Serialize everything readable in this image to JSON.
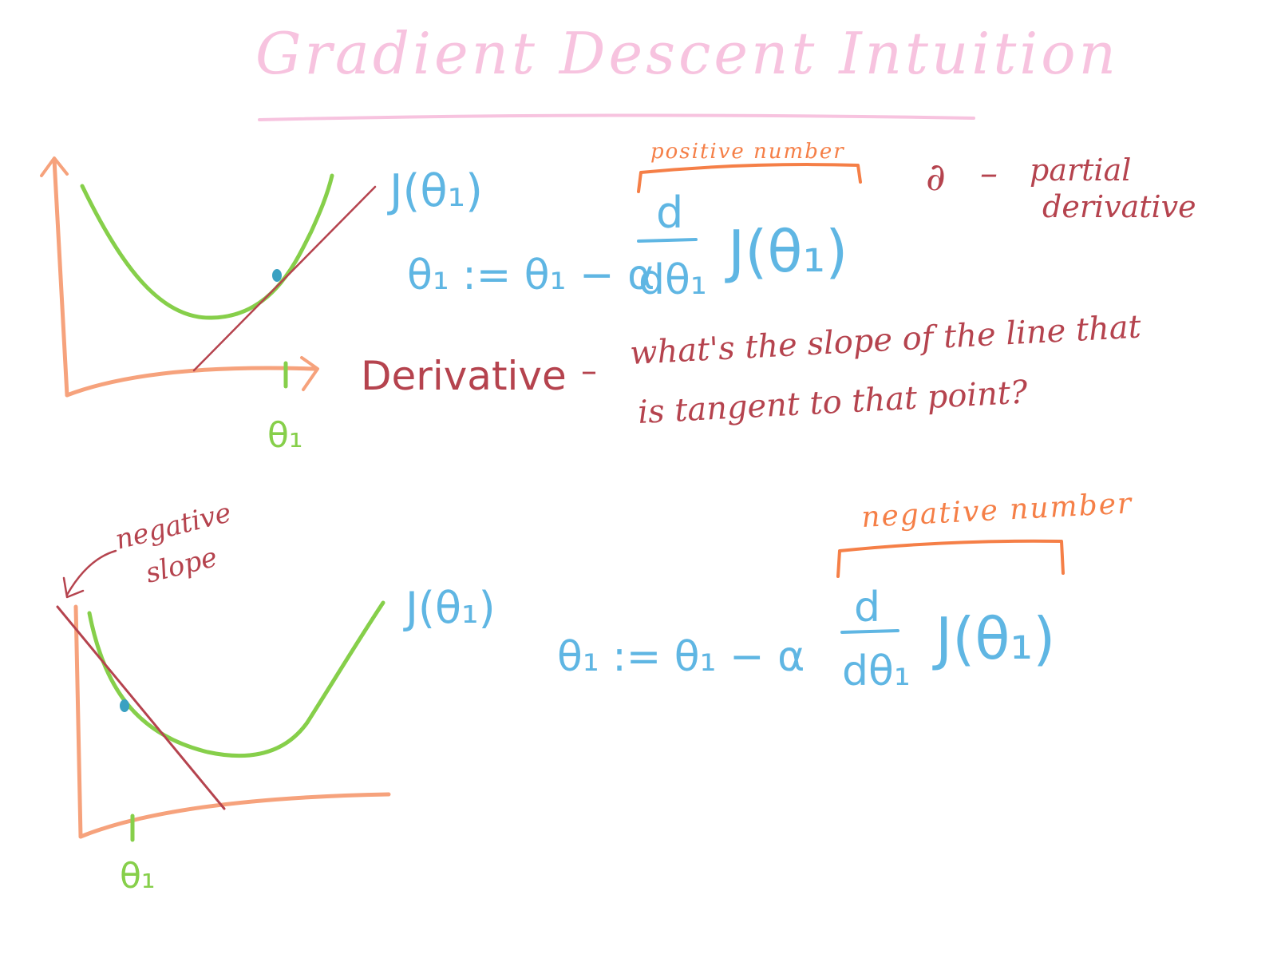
{
  "title": "Gradient Descent Intuition",
  "colors": {
    "title": "#f7c3df",
    "axis": "#f6a27c",
    "curve": "#86cf4a",
    "math": "#5fb6e3",
    "red": "#b5434e",
    "orange": "#f57f47",
    "point": "#3aa1c2"
  },
  "top": {
    "cost_label": "J(θ₁)",
    "theta_label": "θ₁",
    "update_rule": {
      "lhs": "θ₁ := θ₁ − α",
      "numer": "d",
      "denom": "dθ₁",
      "tail": "J(θ₁)"
    },
    "bracket_label": "positive number",
    "partial_symbol": "∂",
    "partial_dash": "–",
    "partial_text_line1": "partial",
    "partial_text_line2": "derivative",
    "derivative_label": "Derivative",
    "derivative_dash": "–",
    "derivative_q_line1": "what's the slope of the line that",
    "derivative_q_line2": "is tangent to that point?"
  },
  "bottom": {
    "cost_label": "J(θ₁)",
    "theta_label": "θ₁",
    "slope_label_line1": "negative",
    "slope_label_line2": "slope",
    "update_rule": {
      "lhs": "θ₁ := θ₁ − α",
      "numer": "d",
      "denom": "dθ₁",
      "tail": "J(θ₁)"
    },
    "bracket_label": "negative number"
  }
}
